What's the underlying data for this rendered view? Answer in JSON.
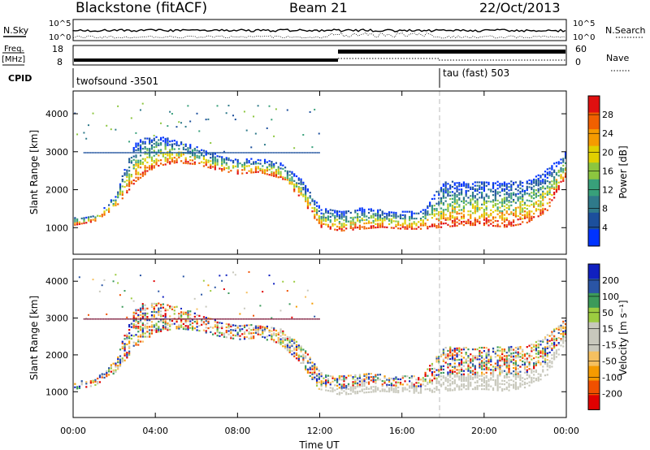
{
  "header": {
    "station": "Blackstone (fitACF)",
    "beam": "Beam 21",
    "date": "22/Oct/2013"
  },
  "strip": {
    "nsky_label": "N.Sky",
    "nsearch_label": "N.Search",
    "noise_ticks": [
      "10^5",
      "10^0"
    ],
    "freq_label": "Freq.",
    "freq_unit": "[MHz]",
    "freq_ticks": [
      "18",
      "8"
    ],
    "nave_label": "Nave",
    "nave_ticks": [
      "60",
      "0"
    ],
    "cpid_label": "CPID",
    "cpid_1": "twofsound -3501",
    "cpid_2": "tau (fast) 503"
  },
  "chart_data": [
    {
      "type": "heatmap",
      "title": "",
      "xlabel": "",
      "ylabel": "Slant Range [km]",
      "xlim": [
        0,
        24
      ],
      "ylim": [
        300,
        4600
      ],
      "x_ticks": [
        "00:00",
        "04:00",
        "08:00",
        "12:00",
        "16:00",
        "20:00",
        "00:00"
      ],
      "y_ticks": [
        1000,
        2000,
        3000,
        4000
      ],
      "colorbar": {
        "label": "Power [dB]",
        "ticks": [
          "28",
          "24",
          "20",
          "16",
          "12",
          "8",
          "4"
        ],
        "range": [
          0,
          30
        ],
        "colors": [
          "#0033ff",
          "#1c4f9c",
          "#2f7a8a",
          "#38a07a",
          "#8cc63f",
          "#e0d000",
          "#f59b00",
          "#f06000",
          "#e01010"
        ]
      },
      "band_series": [
        {
          "x": [
            0.0,
            1.0,
            2.0,
            3.0,
            4.0,
            5.0,
            6.0,
            7.0,
            8.0,
            9.0,
            10.0,
            11.0,
            12.0,
            13.0,
            14.0,
            15.0,
            16.0,
            17.0,
            18.0,
            19.0,
            20.0,
            21.0,
            22.0,
            23.0,
            24.0
          ],
          "low_range_km": [
            1050,
            1150,
            1500,
            2200,
            2600,
            2700,
            2650,
            2500,
            2400,
            2450,
            2300,
            1800,
            1000,
            900,
            950,
            1000,
            950,
            950,
            1000,
            1050,
            1050,
            1000,
            1100,
            1400,
            2400
          ],
          "high_range_km": [
            1250,
            1300,
            1800,
            3300,
            3400,
            3300,
            3100,
            2900,
            2800,
            2800,
            2700,
            2300,
            1500,
            1400,
            1500,
            1450,
            1400,
            1450,
            2200,
            2200,
            2200,
            2200,
            2200,
            2500,
            3000
          ]
        }
      ]
    },
    {
      "type": "heatmap",
      "title": "",
      "xlabel": "Time UT",
      "ylabel": "Slant Range [km]",
      "xlim": [
        0,
        24
      ],
      "ylim": [
        300,
        4600
      ],
      "x_ticks": [
        "00:00",
        "04:00",
        "08:00",
        "12:00",
        "16:00",
        "20:00",
        "00:00"
      ],
      "y_ticks": [
        1000,
        2000,
        3000,
        4000
      ],
      "colorbar": {
        "label": "Velocity [m s⁻¹]",
        "ticks": [
          "200",
          "100",
          "50",
          "15",
          "-15",
          "-50",
          "-100",
          "-200"
        ],
        "range": [
          -250,
          250
        ],
        "colors": [
          "#e00000",
          "#f05000",
          "#f59b00",
          "#f5c060",
          "#c8c8bc",
          "#c8c8bc",
          "#9ccc40",
          "#3c9a5a",
          "#2a55a5",
          "#1020c0"
        ]
      }
    }
  ]
}
